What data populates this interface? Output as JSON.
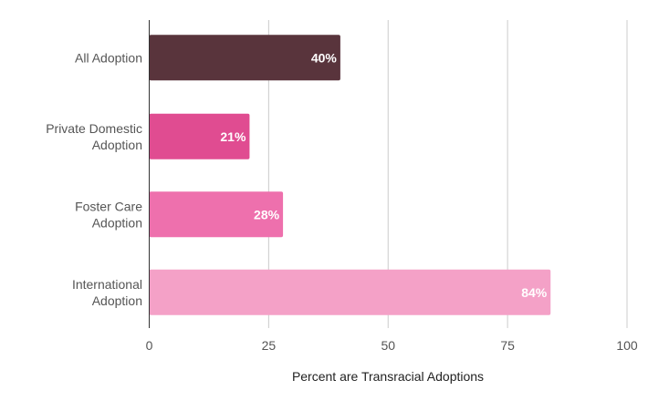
{
  "chart_data": {
    "type": "bar",
    "orientation": "horizontal",
    "categories": [
      [
        "All Adoption"
      ],
      [
        "Private Domestic",
        "Adoption"
      ],
      [
        "Foster Care",
        "Adoption"
      ],
      [
        "International",
        "Adoption"
      ]
    ],
    "values": [
      40,
      21,
      28,
      84
    ],
    "data_labels": [
      "40%",
      "21%",
      "28%",
      "84%"
    ],
    "colors": [
      "#59343c",
      "#e04c91",
      "#ee70ad",
      "#f4a1c7"
    ],
    "xlabel": "Percent are Transracial Adoptions",
    "ylabel": "",
    "xlim": [
      0,
      100
    ],
    "xticks": [
      0,
      25,
      50,
      75,
      100
    ],
    "grid": "vertical",
    "legend": "none"
  }
}
